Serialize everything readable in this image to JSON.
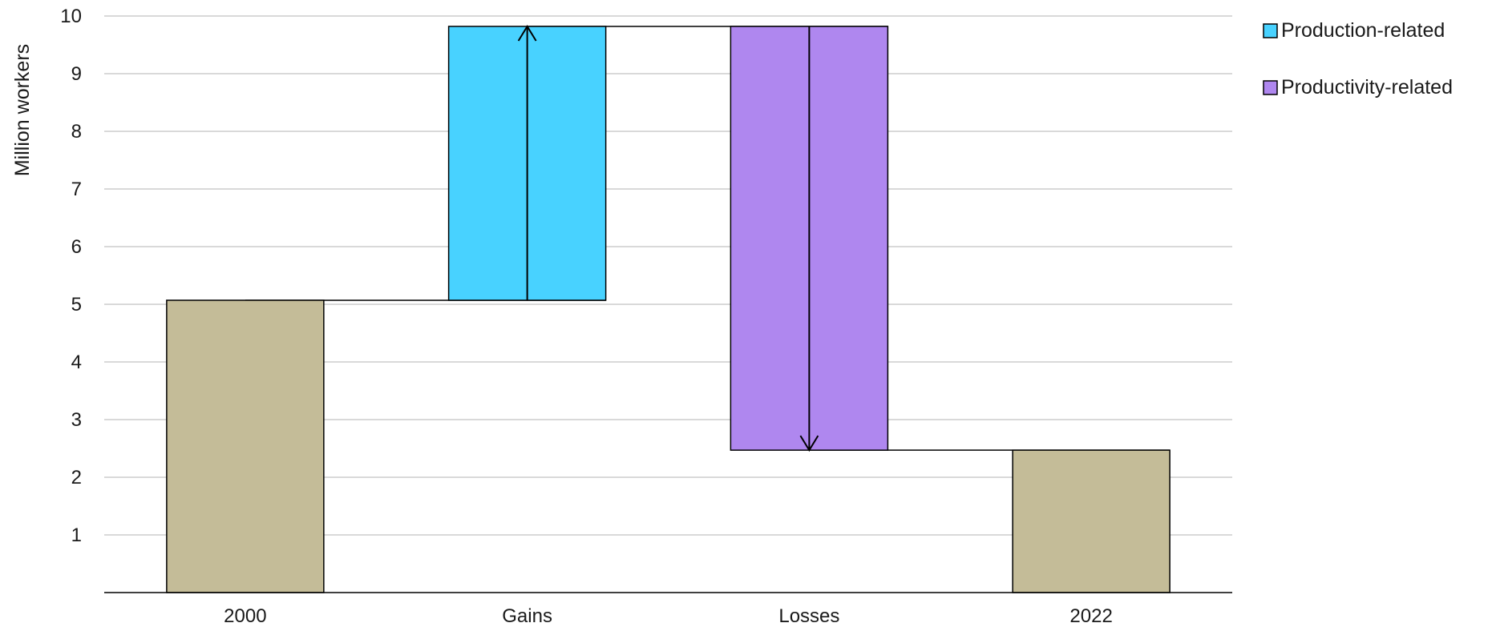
{
  "chart_data": {
    "type": "bar",
    "subtype": "waterfall",
    "title": "",
    "xlabel": "",
    "ylabel": "Million workers",
    "ylim": [
      0,
      10
    ],
    "yticks": [
      1,
      2,
      3,
      4,
      5,
      6,
      7,
      8,
      9,
      10
    ],
    "grid": true,
    "legend_position": "top-right",
    "categories": [
      "2000",
      "Gains",
      "Losses",
      "2022"
    ],
    "bars": [
      {
        "category": "2000",
        "start": 0,
        "end": 5.07,
        "kind": "total",
        "color": "#C4BC98"
      },
      {
        "category": "Gains",
        "start": 5.07,
        "end": 9.82,
        "kind": "increase",
        "series": "Production-related",
        "color": "#48D2FF"
      },
      {
        "category": "Losses",
        "start": 9.82,
        "end": 2.47,
        "kind": "decrease",
        "series": "Productivity-related",
        "color": "#AF87EF"
      },
      {
        "category": "2022",
        "start": 0,
        "end": 2.47,
        "kind": "total",
        "color": "#C4BC98"
      }
    ],
    "legend": [
      {
        "name": "Production-related",
        "color": "#48D2FF"
      },
      {
        "name": "Productivity-related",
        "color": "#AF87EF"
      }
    ]
  }
}
